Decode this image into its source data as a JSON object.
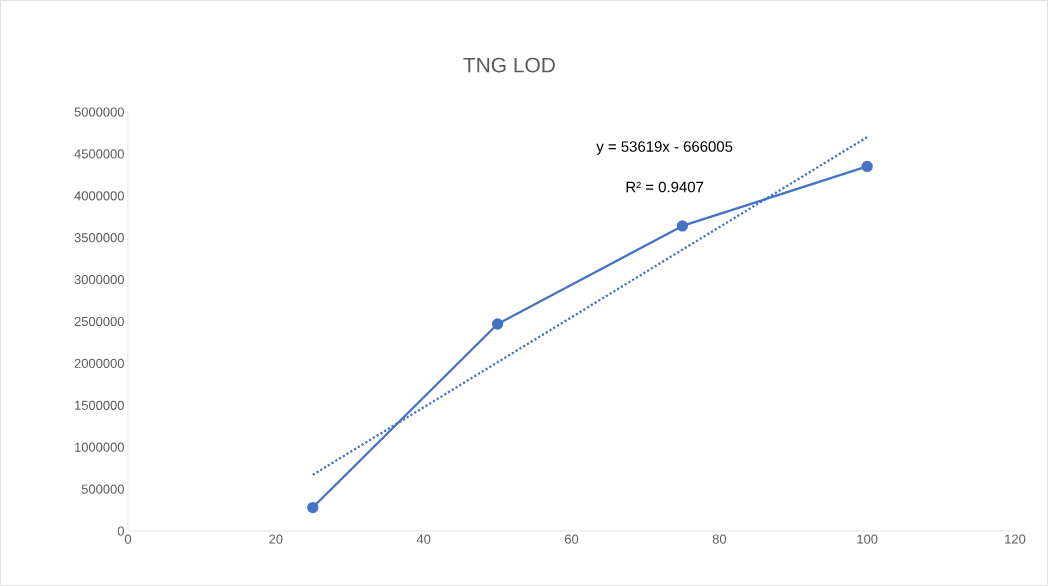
{
  "chart_data": {
    "type": "line",
    "title": "TNG LOD",
    "x": [
      25,
      50,
      75,
      100
    ],
    "series": [
      {
        "color": "#4472c4",
        "values": [
          280000,
          2470000,
          3640000,
          4350000
        ],
        "marker": "circle",
        "line_style": "solid"
      },
      {
        "type": "line",
        "x": [
          25,
          100
        ],
        "color": "#4472c4",
        "values": [
          670000,
          4700000
        ],
        "marker": "none",
        "line_style": "dotted"
      }
    ],
    "xlim": [
      0,
      120
    ],
    "xticks": [
      0,
      20,
      40,
      60,
      80,
      100,
      120
    ],
    "ylim": [
      0,
      5000000
    ],
    "yticks": [
      0,
      500000,
      1000000,
      1500000,
      2000000,
      2500000,
      3000000,
      3500000,
      4000000,
      4500000,
      5000000
    ],
    "annotations": [
      "y = 53619x - 666005",
      "R² = 0.9407"
    ]
  }
}
